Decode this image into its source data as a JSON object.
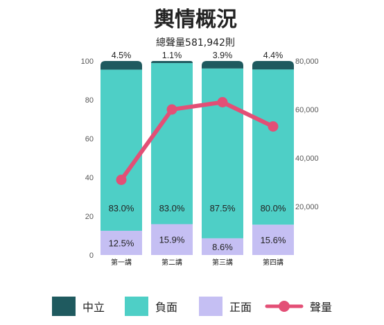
{
  "chart_data": {
    "type": "bar",
    "stacked": true,
    "title": "輿情概況",
    "subtitle": "總聲量581,942則",
    "categories": [
      "第一講",
      "第二講",
      "第三講",
      "第四講"
    ],
    "series": [
      {
        "name": "正面",
        "values": [
          12.5,
          15.9,
          8.6,
          15.6
        ],
        "color": "#c5bff3",
        "labels": [
          "12.5%",
          "15.9%",
          "8.6%",
          "15.6%"
        ]
      },
      {
        "name": "負面",
        "values": [
          83.0,
          83.0,
          87.5,
          80.0
        ],
        "color": "#4ecfc6",
        "labels": [
          "83.0%",
          "83.0%",
          "87.5%",
          "80.0%"
        ]
      },
      {
        "name": "中立",
        "values": [
          4.5,
          1.1,
          3.9,
          4.4
        ],
        "color": "#1f5a5f",
        "labels": [
          "4.5%",
          "1.1%",
          "3.9%",
          "4.4%"
        ]
      }
    ],
    "line_series": {
      "name": "聲量",
      "values": [
        31000,
        60000,
        63000,
        53000
      ],
      "color": "#e34f76",
      "axis": "right"
    },
    "left_axis": {
      "ylim": [
        0,
        100
      ],
      "ticks": [
        "0",
        "20",
        "40",
        "60",
        "80",
        "100"
      ]
    },
    "right_axis": {
      "ylim": [
        0,
        80000
      ],
      "ticks": [
        "20,000",
        "40,000",
        "60,000",
        "80,000"
      ]
    },
    "legend": {
      "placement": "bottom",
      "items": [
        {
          "label": "中立",
          "color": "#1f5a5f",
          "kind": "box"
        },
        {
          "label": "負面",
          "color": "#4ecfc6",
          "kind": "box"
        },
        {
          "label": "正面",
          "color": "#c5bff3",
          "kind": "box"
        },
        {
          "label": "聲量",
          "color": "#e34f76",
          "kind": "line"
        }
      ]
    }
  }
}
